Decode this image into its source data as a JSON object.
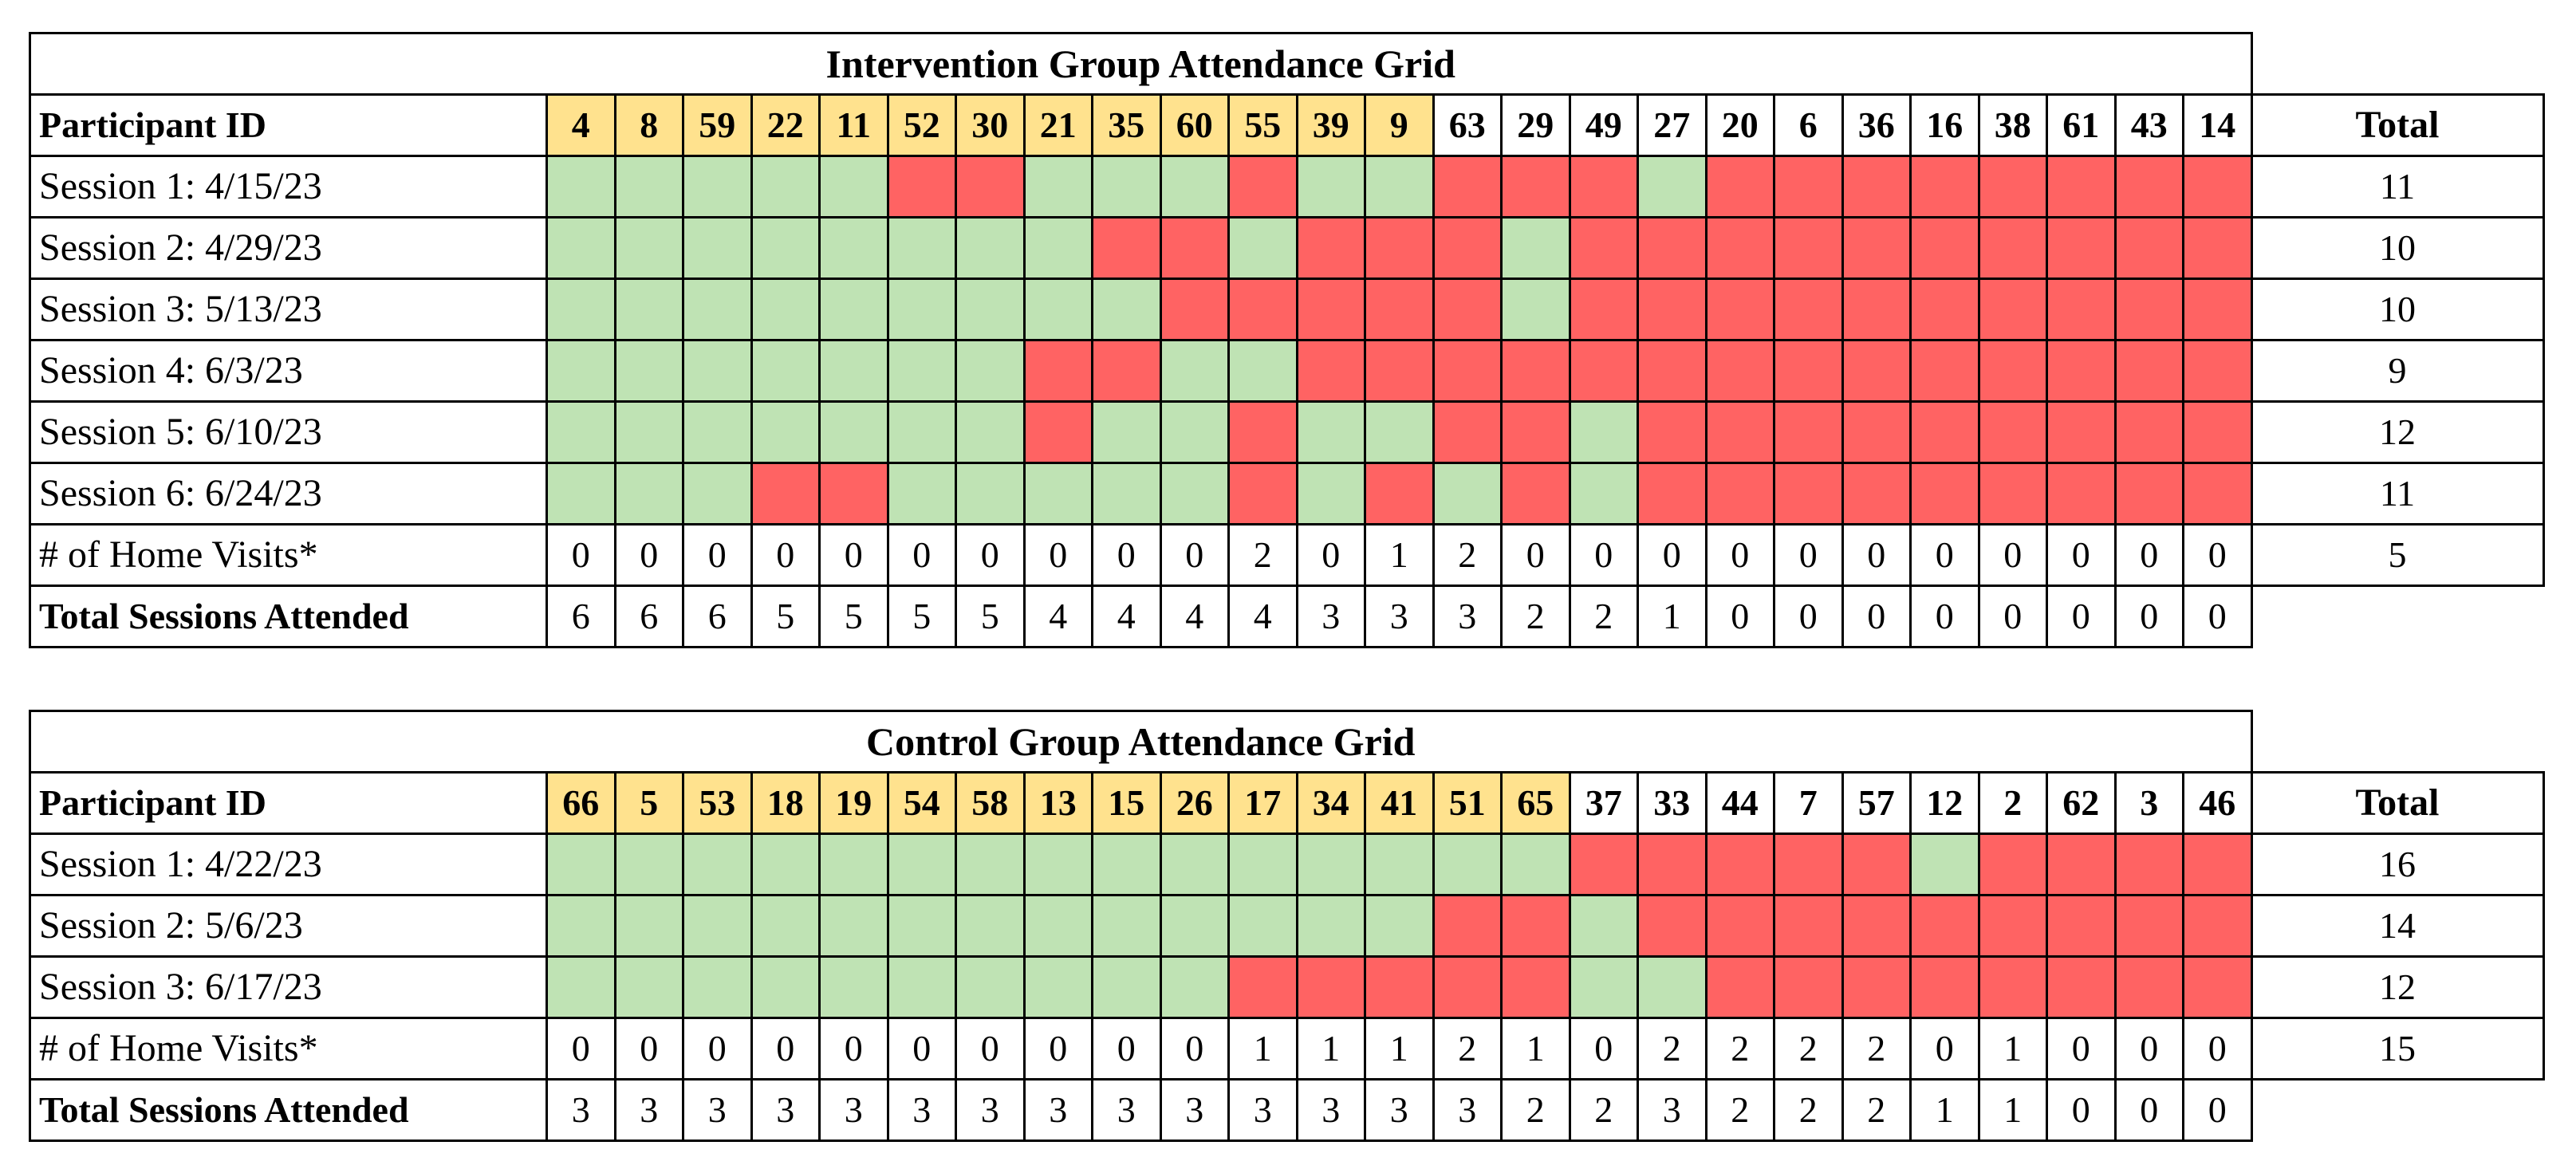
{
  "colors": {
    "attended": "#bfe3b4",
    "absent": "#ff6363",
    "highlight_id": "#ffe28e"
  },
  "grids": [
    {
      "title": "Intervention Group Attendance Grid",
      "id_header": "Participant ID",
      "total_header": "Total",
      "ids": [
        "4",
        "8",
        "59",
        "22",
        "11",
        "52",
        "30",
        "21",
        "35",
        "60",
        "55",
        "39",
        "9",
        "63",
        "29",
        "49",
        "27",
        "20",
        "6",
        "36",
        "16",
        "38",
        "61",
        "43",
        "14"
      ],
      "highlight_count": 13,
      "sessions": [
        {
          "label": "Session 1: 4/15/23",
          "total": "11",
          "att": [
            1,
            1,
            1,
            1,
            1,
            0,
            0,
            1,
            1,
            1,
            0,
            1,
            1,
            0,
            0,
            0,
            1,
            0,
            0,
            0,
            0,
            0,
            0,
            0,
            0
          ]
        },
        {
          "label": "Session 2: 4/29/23",
          "total": "10",
          "att": [
            1,
            1,
            1,
            1,
            1,
            1,
            1,
            1,
            0,
            0,
            1,
            0,
            0,
            0,
            1,
            0,
            0,
            0,
            0,
            0,
            0,
            0,
            0,
            0,
            0
          ]
        },
        {
          "label": "Session 3: 5/13/23",
          "total": "10",
          "att": [
            1,
            1,
            1,
            1,
            1,
            1,
            1,
            1,
            1,
            0,
            0,
            0,
            0,
            0,
            1,
            0,
            0,
            0,
            0,
            0,
            0,
            0,
            0,
            0,
            0
          ]
        },
        {
          "label": "Session 4: 6/3/23",
          "total": "9",
          "att": [
            1,
            1,
            1,
            1,
            1,
            1,
            1,
            0,
            0,
            1,
            1,
            0,
            0,
            0,
            0,
            0,
            0,
            0,
            0,
            0,
            0,
            0,
            0,
            0,
            0
          ]
        },
        {
          "label": "Session 5: 6/10/23",
          "total": "12",
          "att": [
            1,
            1,
            1,
            1,
            1,
            1,
            1,
            0,
            1,
            1,
            0,
            1,
            1,
            0,
            0,
            1,
            0,
            0,
            0,
            0,
            0,
            0,
            0,
            0,
            0
          ]
        },
        {
          "label": "Session 6: 6/24/23",
          "total": "11",
          "att": [
            1,
            1,
            1,
            0,
            0,
            1,
            1,
            1,
            1,
            1,
            0,
            1,
            0,
            1,
            0,
            1,
            0,
            0,
            0,
            0,
            0,
            0,
            0,
            0,
            0
          ]
        }
      ],
      "home_visits": {
        "label": "# of Home Visits*",
        "total": "5",
        "values": [
          "0",
          "0",
          "0",
          "0",
          "0",
          "0",
          "0",
          "0",
          "0",
          "0",
          "2",
          "0",
          "1",
          "2",
          "0",
          "0",
          "0",
          "0",
          "0",
          "0",
          "0",
          "0",
          "0",
          "0",
          "0"
        ]
      },
      "total_attended": {
        "label": "Total Sessions Attended",
        "values": [
          "6",
          "6",
          "6",
          "5",
          "5",
          "5",
          "5",
          "4",
          "4",
          "4",
          "4",
          "3",
          "3",
          "3",
          "2",
          "2",
          "1",
          "0",
          "0",
          "0",
          "0",
          "0",
          "0",
          "0",
          "0"
        ]
      }
    },
    {
      "title": "Control Group Attendance Grid",
      "id_header": "Participant ID",
      "total_header": "Total",
      "ids": [
        "66",
        "5",
        "53",
        "18",
        "19",
        "54",
        "58",
        "13",
        "15",
        "26",
        "17",
        "34",
        "41",
        "51",
        "65",
        "37",
        "33",
        "44",
        "7",
        "57",
        "12",
        "2",
        "62",
        "3",
        "46"
      ],
      "highlight_count": 15,
      "sessions": [
        {
          "label": "Session 1: 4/22/23",
          "total": "16",
          "att": [
            1,
            1,
            1,
            1,
            1,
            1,
            1,
            1,
            1,
            1,
            1,
            1,
            1,
            1,
            1,
            0,
            0,
            0,
            0,
            0,
            1,
            0,
            0,
            0,
            0
          ]
        },
        {
          "label": "Session 2: 5/6/23",
          "total": "14",
          "att": [
            1,
            1,
            1,
            1,
            1,
            1,
            1,
            1,
            1,
            1,
            1,
            1,
            1,
            0,
            0,
            1,
            0,
            0,
            0,
            0,
            0,
            0,
            0,
            0,
            0
          ]
        },
        {
          "label": "Session 3: 6/17/23",
          "total": "12",
          "att": [
            1,
            1,
            1,
            1,
            1,
            1,
            1,
            1,
            1,
            1,
            0,
            0,
            0,
            0,
            0,
            1,
            1,
            0,
            0,
            0,
            0,
            0,
            0,
            0,
            0
          ]
        }
      ],
      "home_visits": {
        "label": "# of Home Visits*",
        "total": "15",
        "values": [
          "0",
          "0",
          "0",
          "0",
          "0",
          "0",
          "0",
          "0",
          "0",
          "0",
          "1",
          "1",
          "1",
          "2",
          "1",
          "0",
          "2",
          "2",
          "2",
          "2",
          "0",
          "1",
          "0",
          "0",
          "0"
        ]
      },
      "total_attended": {
        "label": "Total Sessions Attended",
        "values": [
          "3",
          "3",
          "3",
          "3",
          "3",
          "3",
          "3",
          "3",
          "3",
          "3",
          "3",
          "3",
          "3",
          "3",
          "2",
          "2",
          "3",
          "2",
          "2",
          "2",
          "1",
          "1",
          "0",
          "0",
          "0"
        ]
      }
    }
  ]
}
